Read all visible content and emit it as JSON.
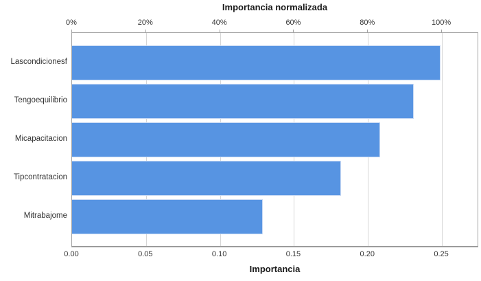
{
  "chart_data": {
    "type": "bar",
    "orientation": "horizontal",
    "title": "Importancia normalizada",
    "categories": [
      "Lascondicionesf",
      "Tengoequilibrio",
      "Micapacitacion",
      "Tipcontratacion",
      "Mitrabajome"
    ],
    "values": [
      0.249,
      0.231,
      0.208,
      0.182,
      0.129
    ],
    "top_axis": {
      "label": "Importancia normalizada",
      "tick_labels": [
        "0%",
        "20%",
        "40%",
        "60%",
        "80%",
        "100%"
      ],
      "tick_values": [
        0,
        20,
        40,
        60,
        80,
        100
      ],
      "max": 110
    },
    "bottom_axis": {
      "label": "Importancia",
      "tick_labels": [
        "0.00",
        "0.05",
        "0.10",
        "0.15",
        "0.20",
        "0.25"
      ],
      "tick_values": [
        0,
        0.05,
        0.1,
        0.15,
        0.2,
        0.25
      ],
      "max": 0.275
    },
    "grid": "vertical",
    "legend": "none",
    "colors": {
      "bar_fill": "#5794e2",
      "bar_border": "#c9daf4",
      "gridline": "#d6d6d6",
      "frame": "#a3a3a3",
      "text": "#333333"
    }
  }
}
